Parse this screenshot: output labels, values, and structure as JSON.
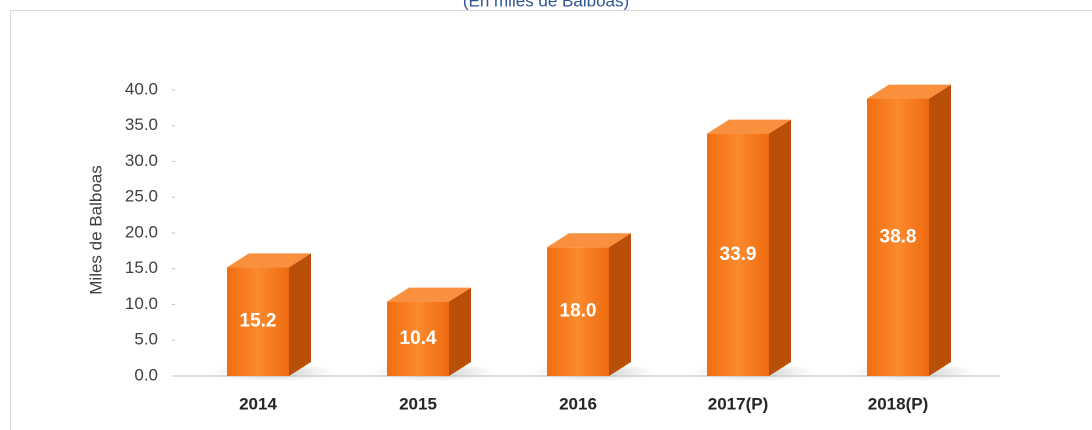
{
  "chart_data": {
    "type": "bar3d",
    "subtitle": "(En miles de Balboas)",
    "y_axis_label": "Miles de Balboas",
    "categories": [
      "2014",
      "2015",
      "2016",
      "2017(P)",
      "2018(P)"
    ],
    "values": [
      15.2,
      10.4,
      18.0,
      33.9,
      38.8
    ],
    "value_labels": [
      "15.2",
      "10.4",
      "18.0",
      "33.9",
      "38.8"
    ],
    "color": "#f47a1f",
    "ylim": [
      0,
      40
    ],
    "yticks": [
      {
        "value": 0,
        "label": "0.0"
      },
      {
        "value": 5,
        "label": "5.0"
      },
      {
        "value": 10,
        "label": "10.0"
      },
      {
        "value": 15,
        "label": "15.0"
      },
      {
        "value": 20,
        "label": "20.0"
      },
      {
        "value": 25,
        "label": "25.0"
      },
      {
        "value": 30,
        "label": "30.0"
      },
      {
        "value": 35,
        "label": "35.0"
      },
      {
        "value": 40,
        "label": "40.0"
      }
    ],
    "grid": false
  }
}
